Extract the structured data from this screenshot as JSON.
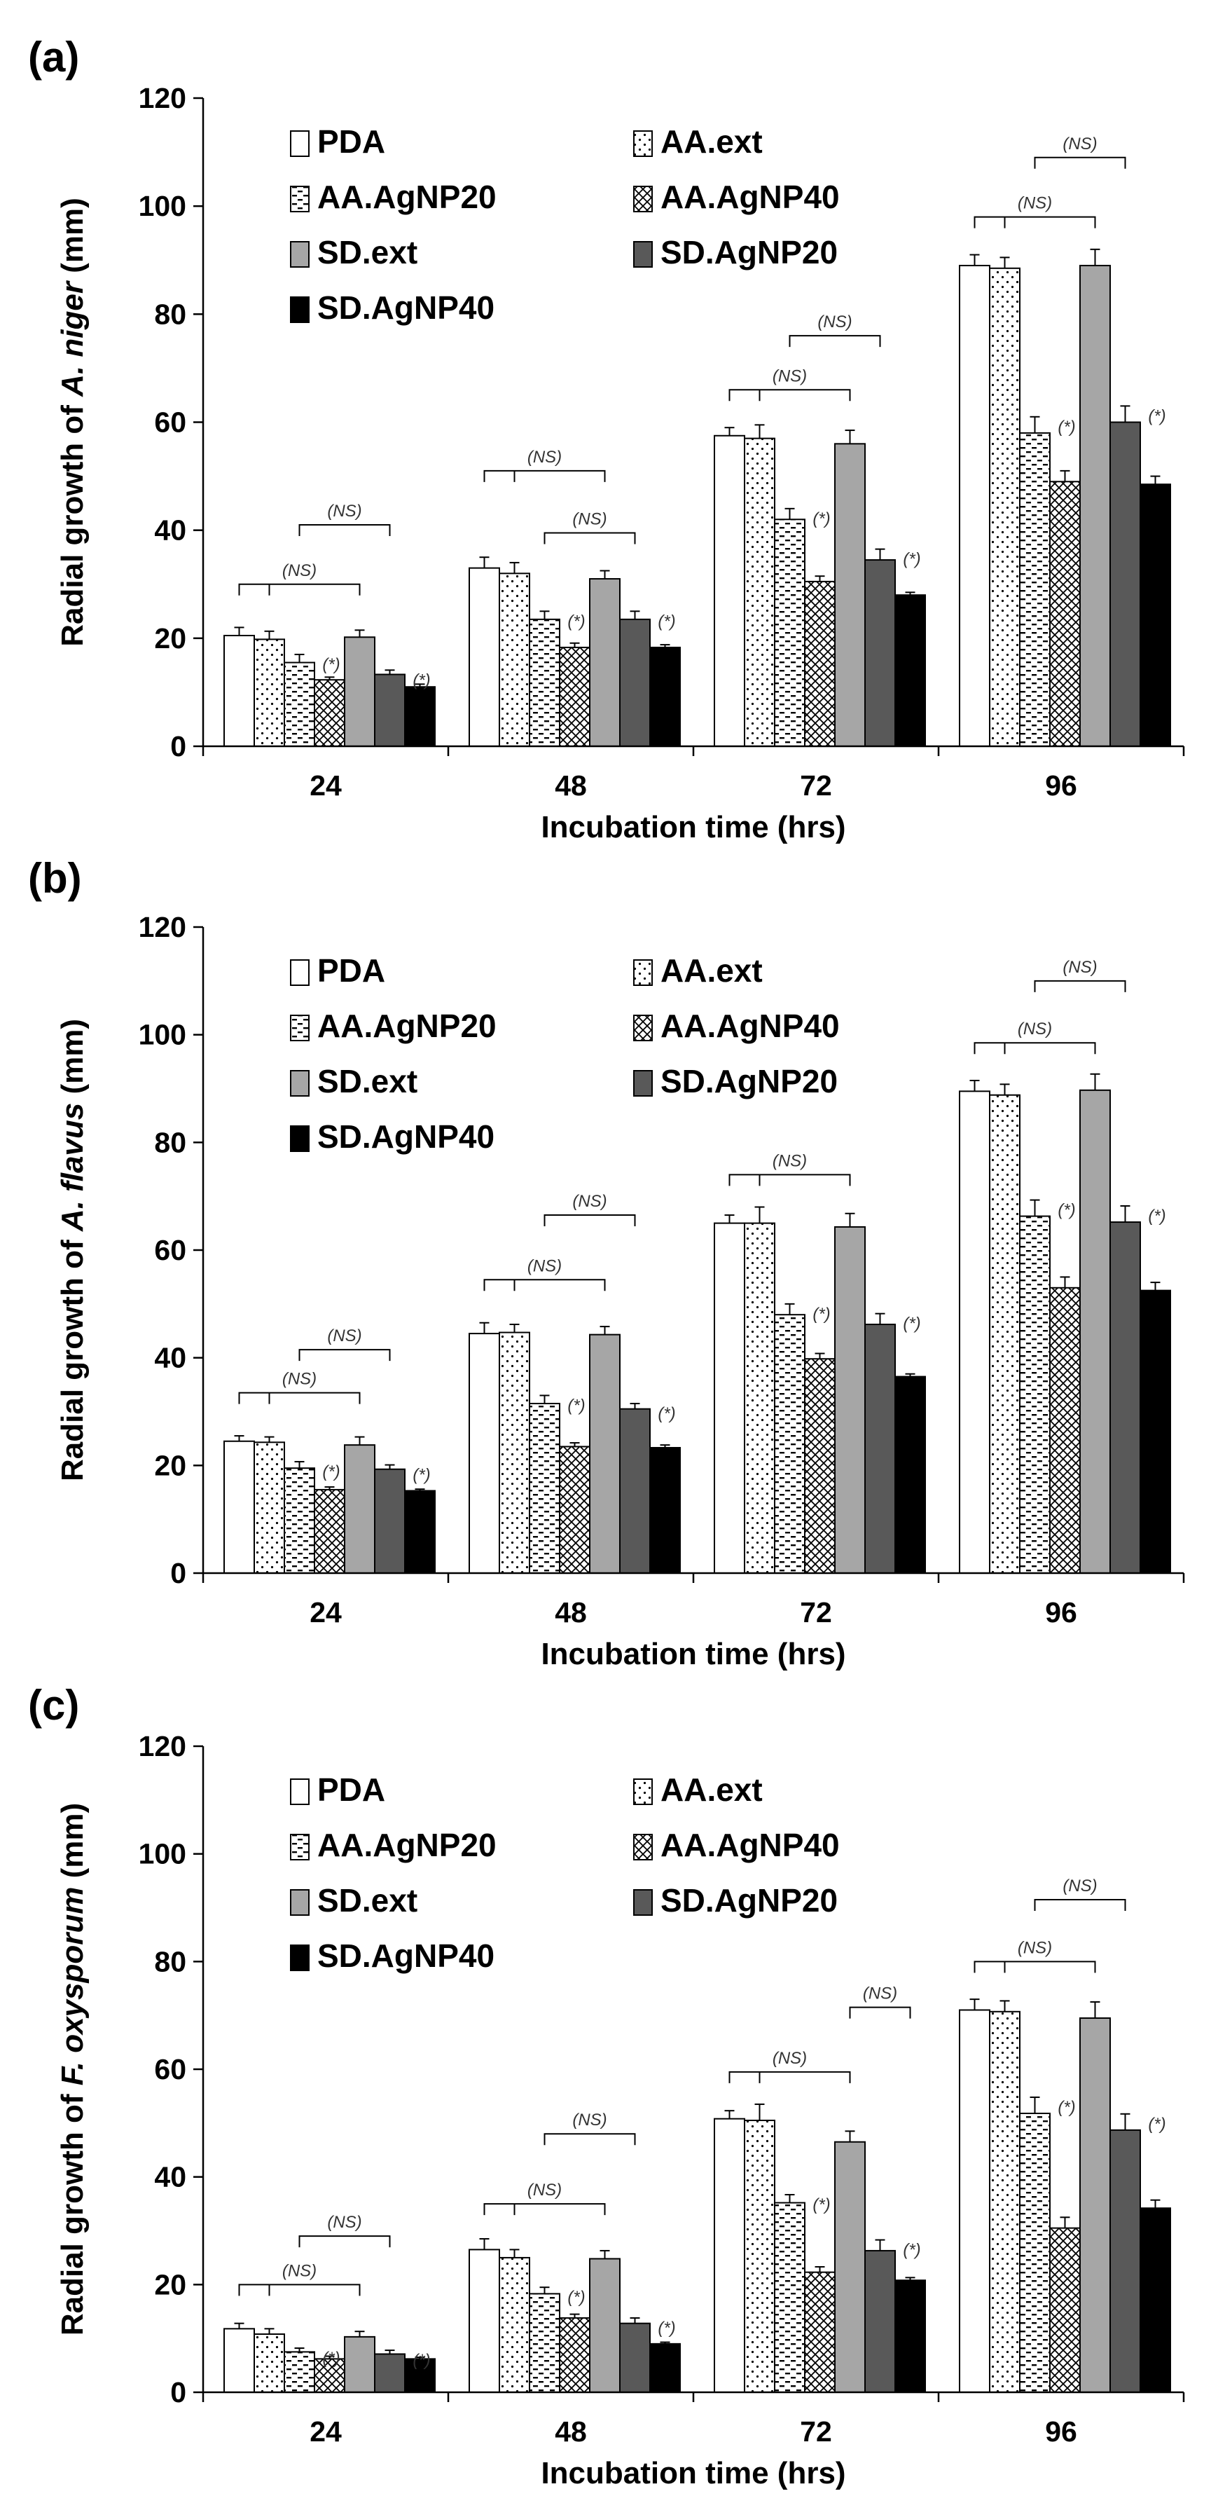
{
  "legend_order": [
    "PDA",
    "AA.ext",
    "AA.AgNP20",
    "AA.AgNP40",
    "SD.ext",
    "SD.AgNP20",
    "SD.AgNP40"
  ],
  "chart_data": [
    {
      "type": "bar",
      "panel_label": "(a)",
      "ylabel_prefix": "Radial growth of ",
      "ylabel_italic": "A. niger",
      "ylabel_suffix": " (mm)",
      "xlabel": "Incubation time (hrs)",
      "ylim": [
        0,
        120
      ],
      "yticks": [
        0,
        20,
        40,
        60,
        80,
        100,
        120
      ],
      "categories": [
        "24",
        "48",
        "72",
        "96"
      ],
      "series": [
        {
          "name": "PDA",
          "values": [
            20.5,
            33,
            57.5,
            89
          ],
          "errors": [
            1.5,
            2,
            1.5,
            2
          ]
        },
        {
          "name": "AA.ext",
          "values": [
            19.8,
            32,
            57,
            88.5
          ],
          "errors": [
            1.5,
            2,
            2.5,
            2
          ]
        },
        {
          "name": "AA.AgNP20",
          "values": [
            15.5,
            23.5,
            42,
            58
          ],
          "errors": [
            1.5,
            1.5,
            2,
            3
          ]
        },
        {
          "name": "AA.AgNP40",
          "values": [
            12.3,
            18.3,
            30.5,
            49
          ],
          "errors": [
            0.5,
            0.8,
            1,
            2
          ]
        },
        {
          "name": "SD.ext",
          "values": [
            20.2,
            31,
            56,
            89
          ],
          "errors": [
            1.3,
            1.5,
            2.5,
            3
          ]
        },
        {
          "name": "SD.AgNP20",
          "values": [
            13.3,
            23.5,
            34.5,
            60
          ],
          "errors": [
            0.8,
            1.5,
            2,
            3
          ]
        },
        {
          "name": "SD.AgNP40",
          "values": [
            11,
            18.3,
            28,
            48.5
          ],
          "errors": [
            0.5,
            0.5,
            0.5,
            1.5
          ]
        }
      ],
      "annotations": [
        {
          "text": "(*)",
          "category": 0,
          "series": 2
        },
        {
          "text": "(*)",
          "category": 0,
          "series": 5
        },
        {
          "text": "(*)",
          "category": 1,
          "series": 2
        },
        {
          "text": "(*)",
          "category": 1,
          "series": 5
        },
        {
          "text": "(*)",
          "category": 2,
          "series": 2
        },
        {
          "text": "(*)",
          "category": 2,
          "series": 5
        },
        {
          "text": "(*)",
          "category": 3,
          "series": 2
        },
        {
          "text": "(*)",
          "category": 3,
          "series": 5
        }
      ],
      "brackets": [
        {
          "text": "(NS)",
          "category": 0,
          "from": 0,
          "to": 4,
          "drops": [
            1
          ],
          "y": 30
        },
        {
          "text": "(NS)",
          "category": 0,
          "from": 2,
          "to": 5,
          "drops": [],
          "y": 41
        },
        {
          "text": "(NS)",
          "category": 1,
          "from": 0,
          "to": 4,
          "drops": [
            1
          ],
          "y": 51
        },
        {
          "text": "(NS)",
          "category": 1,
          "from": 2,
          "to": 5,
          "drops": [],
          "y": 39.5
        },
        {
          "text": "(NS)",
          "category": 2,
          "from": 0,
          "to": 4,
          "drops": [
            1
          ],
          "y": 66
        },
        {
          "text": "(NS)",
          "category": 2,
          "from": 2,
          "to": 5,
          "drops": [],
          "y": 76
        },
        {
          "text": "(NS)",
          "category": 3,
          "from": 0,
          "to": 4,
          "drops": [
            1
          ],
          "y": 98
        },
        {
          "text": "(NS)",
          "category": 3,
          "from": 2,
          "to": 5,
          "drops": [],
          "y": 109
        }
      ]
    },
    {
      "type": "bar",
      "panel_label": "(b)",
      "ylabel_prefix": "Radial growth of ",
      "ylabel_italic": "A. flavus",
      "ylabel_suffix": " (mm)",
      "xlabel": "Incubation time (hrs)",
      "ylim": [
        0,
        120
      ],
      "yticks": [
        0,
        20,
        40,
        60,
        80,
        100,
        120
      ],
      "categories": [
        "24",
        "48",
        "72",
        "96"
      ],
      "series": [
        {
          "name": "PDA",
          "values": [
            24.5,
            44.5,
            65,
            89.5
          ],
          "errors": [
            1,
            2,
            1.5,
            2
          ]
        },
        {
          "name": "AA.ext",
          "values": [
            24.3,
            44.7,
            65,
            88.8
          ],
          "errors": [
            1,
            1.5,
            3,
            2
          ]
        },
        {
          "name": "AA.AgNP20",
          "values": [
            19.5,
            31.5,
            48,
            66.3
          ],
          "errors": [
            1.2,
            1.5,
            2,
            3
          ]
        },
        {
          "name": "AA.AgNP40",
          "values": [
            15.5,
            23.5,
            39.8,
            53
          ],
          "errors": [
            0.5,
            0.7,
            1,
            2
          ]
        },
        {
          "name": "SD.ext",
          "values": [
            23.8,
            44.3,
            64.3,
            89.7
          ],
          "errors": [
            1.5,
            1.5,
            2.5,
            3
          ]
        },
        {
          "name": "SD.AgNP20",
          "values": [
            19.3,
            30.5,
            46.2,
            65.2
          ],
          "errors": [
            0.8,
            1,
            2,
            3
          ]
        },
        {
          "name": "SD.AgNP40",
          "values": [
            15.3,
            23.3,
            36.5,
            52.5
          ],
          "errors": [
            0.3,
            0.5,
            0.5,
            1.5
          ]
        }
      ],
      "annotations": [
        {
          "text": "(*)",
          "category": 0,
          "series": 2
        },
        {
          "text": "(*)",
          "category": 0,
          "series": 5
        },
        {
          "text": "(*)",
          "category": 1,
          "series": 2
        },
        {
          "text": "(*)",
          "category": 1,
          "series": 5
        },
        {
          "text": "(*)",
          "category": 2,
          "series": 2
        },
        {
          "text": "(*)",
          "category": 2,
          "series": 5
        },
        {
          "text": "(*)",
          "category": 3,
          "series": 2
        },
        {
          "text": "(*)",
          "category": 3,
          "series": 5
        }
      ],
      "brackets": [
        {
          "text": "(NS)",
          "category": 0,
          "from": 0,
          "to": 4,
          "drops": [
            1
          ],
          "y": 33.5
        },
        {
          "text": "(NS)",
          "category": 0,
          "from": 2,
          "to": 5,
          "drops": [],
          "y": 41.5
        },
        {
          "text": "(NS)",
          "category": 1,
          "from": 0,
          "to": 4,
          "drops": [
            1
          ],
          "y": 54.5
        },
        {
          "text": "(NS)",
          "category": 1,
          "from": 2,
          "to": 5,
          "drops": [],
          "y": 66.5
        },
        {
          "text": "(NS)",
          "category": 2,
          "from": 0,
          "to": 4,
          "drops": [
            1
          ],
          "y": 74
        },
        {
          "text": "(NS)",
          "category": 3,
          "from": 0,
          "to": 4,
          "drops": [
            1
          ],
          "y": 98.5
        },
        {
          "text": "(NS)",
          "category": 3,
          "from": 2,
          "to": 5,
          "drops": [],
          "y": 110
        }
      ]
    },
    {
      "type": "bar",
      "panel_label": "(c)",
      "ylabel_prefix": "Radial growth of ",
      "ylabel_italic": "F. oxysporum",
      "ylabel_suffix": " (mm)",
      "xlabel": "Incubation time (hrs)",
      "ylim": [
        0,
        120
      ],
      "yticks": [
        0,
        20,
        40,
        60,
        80,
        100,
        120
      ],
      "categories": [
        "24",
        "48",
        "72",
        "96"
      ],
      "series": [
        {
          "name": "PDA",
          "values": [
            11.8,
            26.5,
            50.8,
            71
          ],
          "errors": [
            1,
            2,
            1.5,
            2
          ]
        },
        {
          "name": "AA.ext",
          "values": [
            10.8,
            25,
            50.5,
            70.7
          ],
          "errors": [
            1,
            1.5,
            3,
            2
          ]
        },
        {
          "name": "AA.AgNP20",
          "values": [
            7.5,
            18.3,
            35.2,
            51.8
          ],
          "errors": [
            0.7,
            1.2,
            1.5,
            3
          ]
        },
        {
          "name": "AA.AgNP40",
          "values": [
            6.2,
            13.8,
            22.3,
            30.5
          ],
          "errors": [
            0.5,
            0.7,
            1,
            2
          ]
        },
        {
          "name": "SD.ext",
          "values": [
            10.3,
            24.8,
            46.5,
            69.5
          ],
          "errors": [
            1,
            1.5,
            2,
            3
          ]
        },
        {
          "name": "SD.AgNP20",
          "values": [
            7.1,
            12.8,
            26.3,
            48.7
          ],
          "errors": [
            0.7,
            1,
            2,
            3
          ]
        },
        {
          "name": "SD.AgNP40",
          "values": [
            6.2,
            9,
            20.8,
            34.2
          ],
          "errors": [
            0.3,
            0.3,
            0.5,
            1.5
          ]
        }
      ],
      "annotations": [
        {
          "text": "(*)",
          "category": 0,
          "series": 2
        },
        {
          "text": "(*)",
          "category": 0,
          "series": 5
        },
        {
          "text": "(*)",
          "category": 1,
          "series": 2
        },
        {
          "text": "(*)",
          "category": 1,
          "series": 5
        },
        {
          "text": "(*)",
          "category": 2,
          "series": 2
        },
        {
          "text": "(*)",
          "category": 2,
          "series": 5
        },
        {
          "text": "(*)",
          "category": 3,
          "series": 2
        },
        {
          "text": "(*)",
          "category": 3,
          "series": 5
        }
      ],
      "brackets": [
        {
          "text": "(NS)",
          "category": 0,
          "from": 0,
          "to": 4,
          "drops": [
            1
          ],
          "y": 20
        },
        {
          "text": "(NS)",
          "category": 0,
          "from": 2,
          "to": 5,
          "drops": [],
          "y": 29
        },
        {
          "text": "(NS)",
          "category": 1,
          "from": 0,
          "to": 4,
          "drops": [
            1
          ],
          "y": 35
        },
        {
          "text": "(NS)",
          "category": 1,
          "from": 2,
          "to": 5,
          "drops": [],
          "y": 48
        },
        {
          "text": "(NS)",
          "category": 2,
          "from": 0,
          "to": 4,
          "drops": [
            1
          ],
          "y": 59.5
        },
        {
          "text": "(NS)",
          "category": 2,
          "from": 4,
          "to": 6,
          "drops": [],
          "y": 71.5
        },
        {
          "text": "(NS)",
          "category": 3,
          "from": 0,
          "to": 4,
          "drops": [
            1
          ],
          "y": 80
        },
        {
          "text": "(NS)",
          "category": 3,
          "from": 2,
          "to": 5,
          "drops": [],
          "y": 91.5
        }
      ]
    }
  ]
}
